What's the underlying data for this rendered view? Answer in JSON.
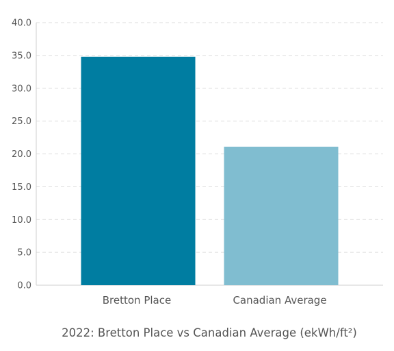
{
  "chart_data": {
    "type": "bar",
    "title": "2022: Bretton Place vs Canadian Average (ekWh/ft²)",
    "xlabel": "",
    "ylabel": "",
    "categories": [
      "Bretton Place",
      "Canadian Average"
    ],
    "values": [
      34.8,
      21.1
    ],
    "bar_colors": [
      "#007da1",
      "#80bdd0"
    ],
    "ylim": [
      0,
      40
    ],
    "yticks": [
      "0.0",
      "5.0",
      "10.0",
      "15.0",
      "20.0",
      "25.0",
      "30.0",
      "35.0",
      "40.0"
    ],
    "grid": true,
    "legend": "none"
  }
}
